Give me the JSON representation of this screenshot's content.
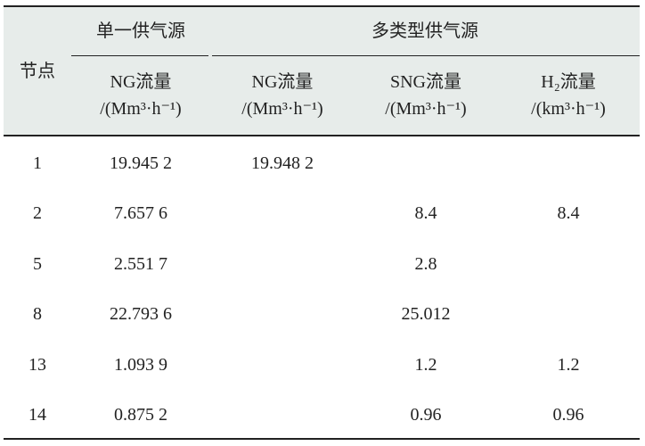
{
  "header": {
    "row_label": "节点",
    "groups": [
      {
        "label": "单一供气源",
        "columns": [
          {
            "name": "NG流量",
            "unit": "/(Mm³·h⁻¹)"
          }
        ]
      },
      {
        "label": "多类型供气源",
        "columns": [
          {
            "name": "NG流量",
            "unit": "/(Mm³·h⁻¹)"
          },
          {
            "name": "SNG流量",
            "unit": "/(Mm³·h⁻¹)"
          },
          {
            "name": "H₂流量",
            "unit": "/(km³·h⁻¹)"
          }
        ]
      }
    ]
  },
  "table": {
    "rows": [
      [
        "1",
        "19.945 2",
        "19.948 2",
        null,
        null
      ],
      [
        "2",
        "7.657 6",
        null,
        "8.4",
        "8.4"
      ],
      [
        "5",
        "2.551 7",
        null,
        "2.8",
        null
      ],
      [
        "8",
        "22.793 6",
        null,
        "25.012",
        null
      ],
      [
        "13",
        "1.093 9",
        null,
        "1.2",
        "1.2"
      ],
      [
        "14",
        "0.875 2",
        null,
        "0.96",
        "0.96"
      ]
    ]
  }
}
